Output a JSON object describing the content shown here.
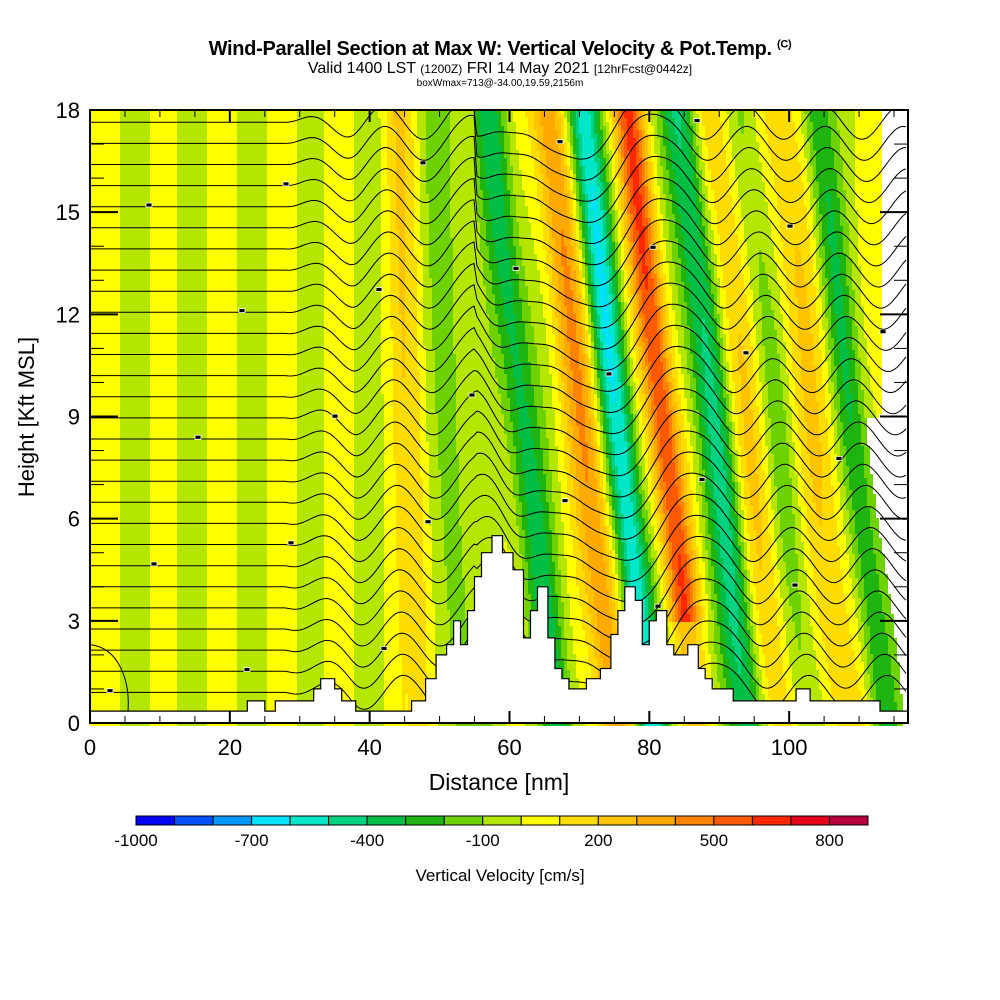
{
  "titles": {
    "main": "Wind-Parallel Section at Max W: Vertical Velocity & Pot.Temp.",
    "copyright": "(C)",
    "valid_prefix": "Valid 1400 LST",
    "valid_utc": "(1200Z)",
    "valid_date": "FRI 14 May 2021",
    "forecast": "[12hrFcst@0442z]",
    "subtitle": "boxWmax=713@-34.00,19.59,2156m"
  },
  "chart_data": {
    "type": "heatmap",
    "title": "Wind-Parallel Section at Max W: Vertical Velocity & Pot.Temp.",
    "xlabel": "Distance [nm]",
    "ylabel": "Height [Kft MSL]",
    "xlim": [
      0,
      117
    ],
    "ylim": [
      0,
      18
    ],
    "x_ticks": [
      "0",
      "20",
      "40",
      "60",
      "80",
      "100"
    ],
    "x_tick_values": [
      0,
      20,
      40,
      60,
      80,
      100
    ],
    "y_ticks": [
      "0",
      "3",
      "6",
      "9",
      "12",
      "15",
      "18"
    ],
    "y_tick_values": [
      0,
      3,
      6,
      9,
      12,
      15,
      18
    ],
    "fill_variable": "Vertical Velocity [cm/s]",
    "contour_variable": "Potential Temperature",
    "max_w": 713,
    "updraft_core": {
      "x_nm": 80.5,
      "from_kft": 3,
      "to_kft": 18,
      "approx_w": 600
    },
    "downdraft_cores": [
      {
        "x_nm": 74,
        "approx_w": -600
      },
      {
        "x_nm": 86,
        "approx_w": -600
      }
    ],
    "secondary_updraft": {
      "x_nm": 70,
      "approx_w": 400
    },
    "terrain_kft": [
      [
        0,
        0.35
      ],
      [
        22.5,
        0.35
      ],
      [
        22.5,
        0.65
      ],
      [
        25,
        0.65
      ],
      [
        25,
        0.35
      ],
      [
        26.5,
        0.35
      ],
      [
        26.5,
        0.65
      ],
      [
        32,
        0.65
      ],
      [
        32,
        1.0
      ],
      [
        33,
        1.0
      ],
      [
        33,
        1.3
      ],
      [
        35,
        1.3
      ],
      [
        35,
        1.0
      ],
      [
        36,
        1.0
      ],
      [
        36,
        0.65
      ],
      [
        38,
        0.65
      ],
      [
        38,
        0.35
      ],
      [
        46,
        0.35
      ],
      [
        46,
        0.65
      ],
      [
        48,
        0.65
      ],
      [
        48,
        1.3
      ],
      [
        49.5,
        1.3
      ],
      [
        49.5,
        2.0
      ],
      [
        51,
        2.0
      ],
      [
        51,
        2.3
      ],
      [
        52,
        2.3
      ],
      [
        52,
        3.0
      ],
      [
        53,
        3.0
      ],
      [
        53,
        2.3
      ],
      [
        54,
        2.3
      ],
      [
        54,
        3.3
      ],
      [
        55,
        3.3
      ],
      [
        55,
        4.3
      ],
      [
        56,
        4.3
      ],
      [
        56,
        5.0
      ],
      [
        57.5,
        5.0
      ],
      [
        57.5,
        5.5
      ],
      [
        59,
        5.5
      ],
      [
        59,
        5.0
      ],
      [
        60.5,
        5.0
      ],
      [
        60.5,
        4.5
      ],
      [
        62,
        4.5
      ],
      [
        62,
        2.5
      ],
      [
        63,
        2.5
      ],
      [
        63,
        3.3
      ],
      [
        64,
        3.3
      ],
      [
        64,
        4.0
      ],
      [
        65.5,
        4.0
      ],
      [
        65.5,
        2.5
      ],
      [
        66.5,
        2.5
      ],
      [
        66.5,
        1.6
      ],
      [
        67.5,
        1.6
      ],
      [
        67.5,
        1.3
      ],
      [
        68.5,
        1.3
      ],
      [
        68.5,
        1.0
      ],
      [
        71,
        1.0
      ],
      [
        71,
        1.3
      ],
      [
        73,
        1.3
      ],
      [
        73,
        1.6
      ],
      [
        74.5,
        1.6
      ],
      [
        74.5,
        2.6
      ],
      [
        75.5,
        2.6
      ],
      [
        75.5,
        3.3
      ],
      [
        76.5,
        3.3
      ],
      [
        76.5,
        4.0
      ],
      [
        78,
        4.0
      ],
      [
        78,
        3.6
      ],
      [
        79,
        3.6
      ],
      [
        79,
        2.3
      ],
      [
        80,
        2.3
      ],
      [
        80,
        3.0
      ],
      [
        81,
        3.0
      ],
      [
        81,
        3.3
      ],
      [
        82.5,
        3.3
      ],
      [
        82.5,
        2.3
      ],
      [
        83.5,
        2.3
      ],
      [
        83.5,
        2.0
      ],
      [
        85.5,
        2.0
      ],
      [
        85.5,
        2.3
      ],
      [
        87,
        2.3
      ],
      [
        87,
        1.6
      ],
      [
        88,
        1.6
      ],
      [
        88,
        1.3
      ],
      [
        89,
        1.3
      ],
      [
        89,
        1.0
      ],
      [
        92,
        1.0
      ],
      [
        92,
        0.65
      ],
      [
        101,
        0.65
      ],
      [
        101,
        1.0
      ],
      [
        103,
        1.0
      ],
      [
        103,
        0.65
      ],
      [
        113,
        0.65
      ],
      [
        113,
        0.35
      ],
      [
        117,
        0.35
      ]
    ]
  },
  "colorbar": {
    "label": "Vertical Velocity [cm/s]",
    "tick_labels": [
      "-1000",
      "-700",
      "-400",
      "-100",
      "200",
      "500",
      "800"
    ],
    "tick_values": [
      -1000,
      -700,
      -400,
      -100,
      200,
      500,
      800
    ],
    "bins": [
      -1000,
      -900,
      -800,
      -700,
      -600,
      -500,
      -400,
      -300,
      -200,
      -100,
      0,
      100,
      200,
      300,
      400,
      500,
      600,
      700,
      800,
      900
    ],
    "colors": [
      "#0000ff",
      "#0050ff",
      "#0096ff",
      "#00e1ff",
      "#00e6c8",
      "#00d282",
      "#00be46",
      "#20b410",
      "#6ed200",
      "#b4e600",
      "#ffff00",
      "#ffdc00",
      "#ffc300",
      "#ffaa00",
      "#ff8200",
      "#ff5a00",
      "#ff2800",
      "#e6001e",
      "#b4003c"
    ]
  },
  "contour_labels_count": 60
}
